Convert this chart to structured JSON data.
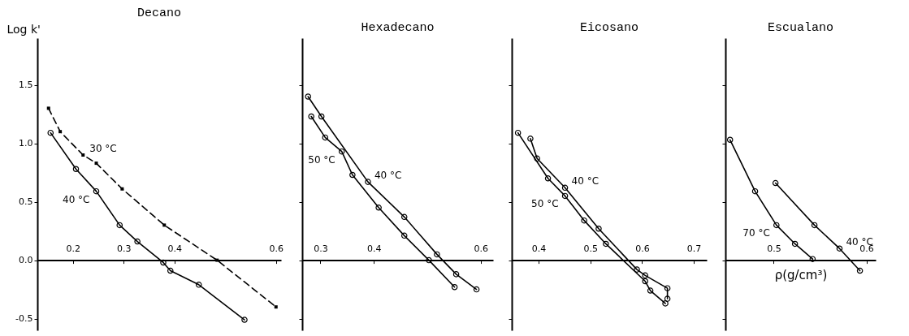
{
  "chart_data": [
    {
      "type": "line",
      "title": "Decano",
      "ylabel": "Log k'",
      "xlim": [
        0.13,
        0.61
      ],
      "xticks": [
        {
          "value": 0.2,
          "label": "0.2"
        },
        {
          "value": 0.3,
          "label": "0.3"
        },
        {
          "value": 0.4,
          "label": "0.4"
        },
        {
          "value": 0.6,
          "label": "0.6"
        }
      ],
      "ylim": [
        -0.6,
        1.9
      ],
      "yticks": [
        -0.5,
        {
          "value": 0,
          "label": "0.0"
        },
        0.5,
        {
          "value": 1,
          "label": "1.0"
        },
        1.5
      ],
      "grid": false,
      "series": [
        {
          "name": "40 °C",
          "color": "#000000",
          "marker": "circle",
          "line_style": "solid",
          "x": [
            0.156,
            0.206,
            0.246,
            0.292,
            0.327,
            0.378,
            0.392,
            0.448,
            0.538
          ],
          "values": [
            1.09,
            0.78,
            0.59,
            0.3,
            0.16,
            -0.02,
            -0.09,
            -0.21,
            -0.51
          ]
        },
        {
          "name": "30 °C",
          "color": "#000000",
          "marker": "square",
          "line_style": "dashed",
          "x": [
            0.152,
            0.175,
            0.22,
            0.246,
            0.297,
            0.38,
            0.484,
            0.6
          ],
          "values": [
            1.3,
            1.1,
            0.9,
            0.83,
            0.61,
            0.3,
            0.0,
            -0.4
          ]
        }
      ]
    },
    {
      "type": "line",
      "title": "Hexadecano",
      "xlim": [
        0.266,
        0.623
      ],
      "xticks": [
        {
          "value": 0.3,
          "label": "0.3"
        },
        {
          "value": 0.4,
          "label": "0.4"
        },
        {
          "value": 0.6,
          "label": "0.6"
        }
      ],
      "ylim": [
        -0.6,
        1.9
      ],
      "yticks": [
        -0.5,
        0,
        0.5,
        1,
        1.5
      ],
      "tick_labels": "x",
      "grid": false,
      "series": [
        {
          "name": "50 °C",
          "color": "#000000",
          "marker": "circle",
          "line_style": "solid",
          "x": [
            0.283,
            0.309,
            0.34,
            0.36,
            0.409,
            0.457,
            0.503,
            0.551
          ],
          "values": [
            1.23,
            1.05,
            0.93,
            0.73,
            0.45,
            0.21,
            0.0,
            -0.23
          ]
        },
        {
          "name": "40 °C",
          "color": "#000000",
          "marker": "circle",
          "line_style": "solid",
          "x": [
            0.277,
            0.302,
            0.389,
            0.457,
            0.518,
            0.554,
            0.592
          ],
          "values": [
            1.4,
            1.23,
            0.67,
            0.37,
            0.05,
            -0.12,
            -0.25
          ]
        }
      ]
    },
    {
      "type": "line",
      "title": "Eicosano",
      "xlim": [
        0.348,
        0.725
      ],
      "xticks": [
        {
          "value": 0.4,
          "label": "0.4"
        },
        {
          "value": 0.5,
          "label": "0.5"
        },
        {
          "value": 0.6,
          "label": "0.6"
        },
        {
          "value": 0.7,
          "label": "0.7"
        }
      ],
      "ylim": [
        -0.6,
        1.9
      ],
      "yticks": [
        -0.5,
        0,
        0.5,
        1,
        1.5
      ],
      "tick_labels": "x",
      "grid": false,
      "series": [
        {
          "name": "50 °C",
          "color": "#000000",
          "marker": "circle",
          "line_style": "solid",
          "x": [
            0.36,
            0.418,
            0.451,
            0.488,
            0.53,
            0.606,
            0.616,
            0.645
          ],
          "values": [
            1.09,
            0.7,
            0.55,
            0.34,
            0.14,
            -0.18,
            -0.26,
            -0.37
          ]
        },
        {
          "name": "40 °C",
          "color": "#000000",
          "marker": "circle",
          "line_style": "solid",
          "x": [
            0.384,
            0.397,
            0.451,
            0.516,
            0.59,
            0.606,
            0.649,
            0.649
          ],
          "values": [
            1.04,
            0.87,
            0.62,
            0.27,
            -0.08,
            -0.13,
            -0.24,
            -0.33
          ]
        }
      ]
    },
    {
      "type": "line",
      "title": "Escualano",
      "xlabel": "ρ(g/cm³)",
      "xlim": [
        0.448,
        0.61
      ],
      "xticks": [
        {
          "value": 0.5,
          "label": "0.5"
        },
        {
          "value": 0.6,
          "label": "0.6"
        }
      ],
      "ylim": [
        -0.6,
        1.9
      ],
      "yticks": [
        -0.5,
        0,
        0.5,
        1,
        1.5
      ],
      "tick_labels": "x",
      "grid": false,
      "series": [
        {
          "name": "70 °C",
          "color": "#000000",
          "marker": "circle",
          "line_style": "solid",
          "x": [
            0.453,
            0.48,
            0.503,
            0.523,
            0.542
          ],
          "values": [
            1.03,
            0.59,
            0.3,
            0.14,
            0.01
          ]
        },
        {
          "name": "40 °C",
          "color": "#000000",
          "marker": "circle",
          "line_style": "solid",
          "x": [
            0.502,
            0.544,
            0.571,
            0.593
          ],
          "values": [
            0.66,
            0.3,
            0.1,
            -0.09
          ]
        }
      ]
    }
  ]
}
